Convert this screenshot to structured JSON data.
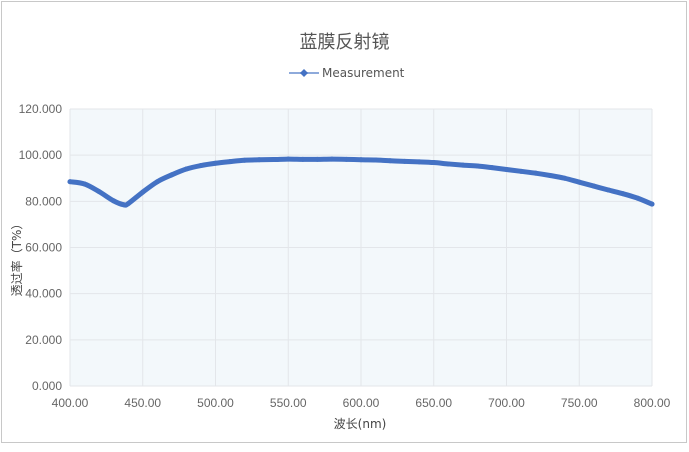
{
  "chart_data": {
    "type": "line",
    "title": "蓝膜反射镜",
    "xlabel": "波长(nm)",
    "ylabel": "透过率（T%）",
    "xlim": [
      400,
      800
    ],
    "ylim": [
      0,
      120
    ],
    "xticks": [
      "400.00",
      "450.00",
      "500.00",
      "550.00",
      "600.00",
      "650.00",
      "700.00",
      "750.00",
      "800.00"
    ],
    "yticks": [
      "0.000",
      "20.000",
      "40.000",
      "60.000",
      "80.000",
      "100.000",
      "120.000"
    ],
    "grid": true,
    "legend_position": "top",
    "colors": {
      "series": "#4472c4",
      "plot_bg": "#f3f8fb",
      "grid": "#e3e6ea"
    },
    "series": [
      {
        "name": "Measurement",
        "x": [
          400,
          410,
          420,
          430,
          437,
          440,
          450,
          460,
          470,
          480,
          490,
          500,
          510,
          520,
          530,
          540,
          550,
          560,
          570,
          580,
          590,
          600,
          610,
          620,
          630,
          640,
          650,
          660,
          670,
          680,
          690,
          700,
          710,
          720,
          730,
          740,
          750,
          760,
          770,
          780,
          790,
          800
        ],
        "y": [
          88.5,
          87.5,
          84.2,
          80.2,
          78.5,
          79.0,
          84.0,
          88.5,
          91.5,
          94.0,
          95.5,
          96.5,
          97.2,
          97.8,
          98.0,
          98.1,
          98.3,
          98.2,
          98.2,
          98.3,
          98.2,
          98.0,
          97.9,
          97.6,
          97.3,
          97.1,
          96.8,
          96.2,
          95.7,
          95.3,
          94.6,
          93.8,
          93.0,
          92.2,
          91.2,
          90.0,
          88.3,
          86.6,
          84.9,
          83.3,
          81.4,
          78.8
        ]
      }
    ]
  }
}
